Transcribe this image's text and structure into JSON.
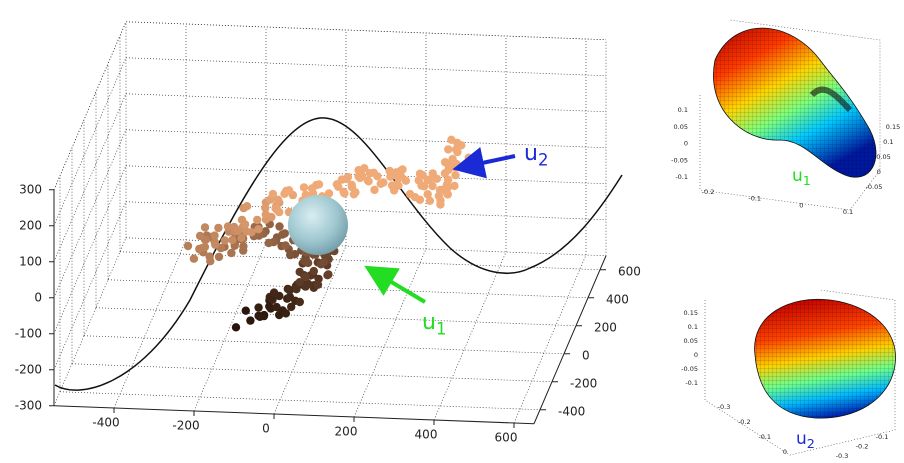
{
  "chart_data": [
    {
      "type": "scatter3d",
      "xlim": [
        -550,
        650
      ],
      "xticks": [
        -400,
        -200,
        0,
        200,
        400,
        600
      ],
      "ylim": [
        -500,
        700
      ],
      "yticks": [
        -400,
        -200,
        0,
        200,
        400,
        600
      ],
      "zlim": [
        -300,
        300
      ],
      "zticks": [
        -300,
        -200,
        -100,
        0,
        100,
        200,
        300
      ],
      "grid": true,
      "annotations": [
        {
          "base": "u",
          "sub": "2",
          "color": "#1a2bd6"
        },
        {
          "base": "u",
          "sub": "1",
          "color": "#22dd22"
        }
      ]
    },
    {
      "type": "surface3d",
      "xlim": [
        -0.2,
        0.1
      ],
      "xticks": [
        -0.2,
        -0.1,
        0,
        0.1
      ],
      "ylim": [
        -0.05,
        0.15
      ],
      "yticks": [
        -0.05,
        0,
        0.05,
        0.1,
        0.15
      ],
      "zlim": [
        -0.1,
        0.1
      ],
      "zticks": [
        -0.1,
        -0.05,
        0,
        0.05,
        0.1
      ],
      "annotation": {
        "base": "u",
        "sub": "1",
        "color": "#22dd22"
      }
    },
    {
      "type": "surface3d",
      "xlim": [
        -0.3,
        0
      ],
      "xticks": [
        -0.3,
        -0.2,
        -0.1,
        0
      ],
      "ylim": [
        -0.3,
        -0.1
      ],
      "yticks": [
        -0.3,
        -0.2,
        -0.1
      ],
      "zlim": [
        -0.1,
        0.15
      ],
      "zticks": [
        -0.1,
        -0.05,
        0,
        0.05,
        0.1,
        0.15
      ],
      "annotation": {
        "base": "u",
        "sub": "2",
        "color": "#1a2bd6"
      }
    }
  ]
}
